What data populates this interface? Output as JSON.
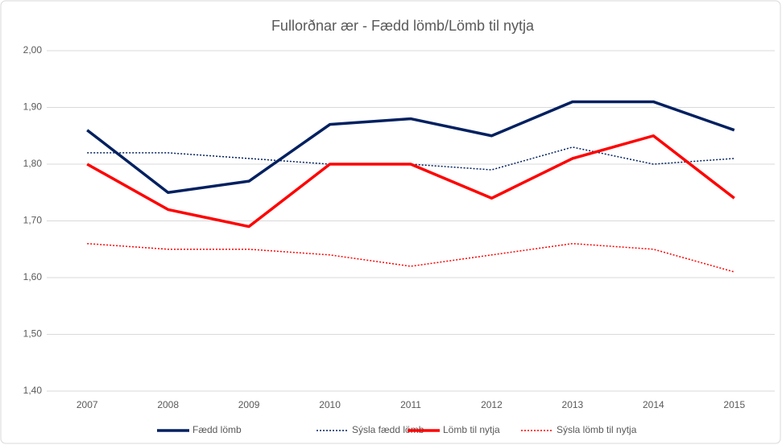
{
  "chart_data": {
    "type": "line",
    "title": "Fullorðnar ær - Fædd lömb/Lömb til nytja",
    "categories": [
      "2007",
      "2008",
      "2009",
      "2010",
      "2011",
      "2012",
      "2013",
      "2014",
      "2015"
    ],
    "series": [
      {
        "name": "Fædd lömb",
        "color": "#002060",
        "line_style": "solid",
        "values": [
          1.86,
          1.75,
          1.77,
          1.87,
          1.88,
          1.85,
          1.91,
          1.91,
          1.86
        ]
      },
      {
        "name": "Sýsla fædd lömb",
        "color": "#002060",
        "line_style": "dotted",
        "values": [
          1.82,
          1.82,
          1.81,
          1.8,
          1.8,
          1.79,
          1.83,
          1.8,
          1.81
        ]
      },
      {
        "name": "Lömb til nytja",
        "color": "#ff0000",
        "line_style": "solid",
        "values": [
          1.8,
          1.72,
          1.69,
          1.8,
          1.8,
          1.74,
          1.81,
          1.85,
          1.74
        ]
      },
      {
        "name": "Sýsla lömb til nytja",
        "color": "#ff0000",
        "line_style": "dotted",
        "values": [
          1.66,
          1.65,
          1.65,
          1.64,
          1.62,
          1.64,
          1.66,
          1.65,
          1.61
        ]
      }
    ],
    "ylim": [
      1.4,
      2.0
    ],
    "yticks": [
      {
        "value": 1.4,
        "label": "1,40"
      },
      {
        "value": 1.5,
        "label": "1,50"
      },
      {
        "value": 1.6,
        "label": "1,60"
      },
      {
        "value": 1.7,
        "label": "1,70"
      },
      {
        "value": 1.8,
        "label": "1,80"
      },
      {
        "value": 1.9,
        "label": "1,90"
      },
      {
        "value": 2.0,
        "label": "2,00"
      }
    ],
    "grid": true,
    "legend": "bottom"
  }
}
